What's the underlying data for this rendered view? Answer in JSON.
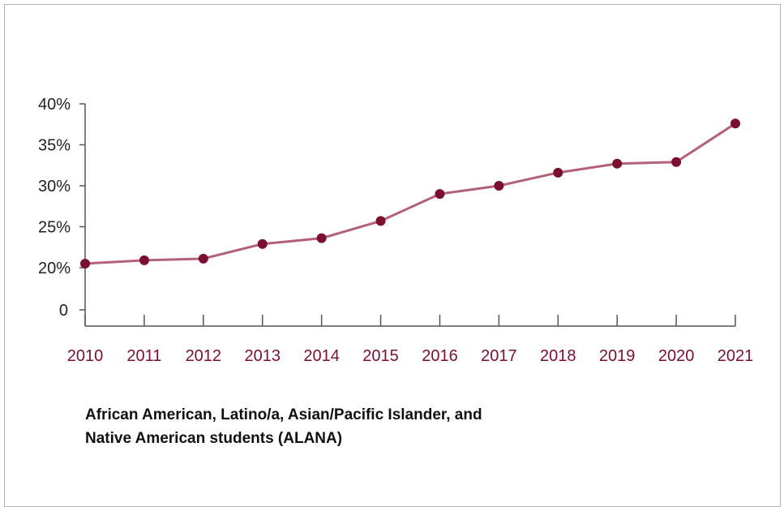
{
  "chart_data": {
    "type": "line",
    "title": "",
    "xlabel": "",
    "ylabel": "",
    "categories": [
      "2010",
      "2011",
      "2012",
      "2013",
      "2014",
      "2015",
      "2016",
      "2017",
      "2018",
      "2019",
      "2020",
      "2021"
    ],
    "series": [
      {
        "values": [
          20.5,
          20.9,
          21.1,
          22.9,
          23.6,
          25.7,
          29.0,
          30.0,
          31.6,
          32.7,
          32.9,
          37.6
        ]
      }
    ],
    "y_ticks": [
      "0",
      "20%",
      "25%",
      "30%",
      "35%",
      "40%"
    ],
    "ylim": [
      15,
      40
    ],
    "y_axis_break": true,
    "grid": false,
    "caption_lines": [
      "African American, Latino/a, Asian/Pacific Islander, and",
      "Native American students (ALANA)"
    ],
    "colors": {
      "line": "#b5607a",
      "marker": "#7a0f2f",
      "x_tick_text": "#7a0f2f"
    }
  }
}
